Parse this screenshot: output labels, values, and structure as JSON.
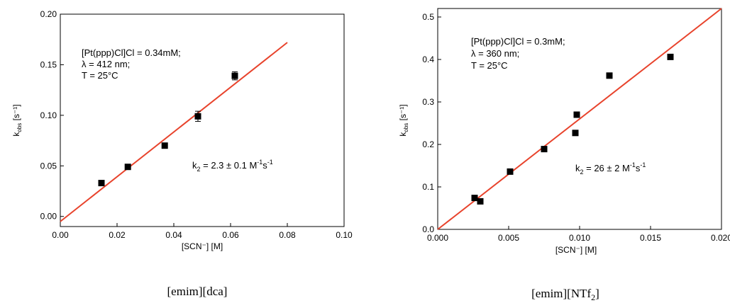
{
  "chart_data": [
    {
      "type": "scatter",
      "caption": "[emim][dca]",
      "xlabel": "[SCN⁻] [M]",
      "ylabel_main": "k",
      "ylabel_sub": "obs",
      "ylabel_unit": " [s⁻¹]",
      "xlim": [
        0,
        0.1
      ],
      "ylim": [
        -0.01,
        0.2
      ],
      "xticks": [
        0,
        0.02,
        0.04,
        0.06,
        0.08,
        0.1
      ],
      "xtick_labels": [
        "0.00",
        "0.02",
        "0.04",
        "0.06",
        "0.08",
        "0.10"
      ],
      "yticks": [
        0,
        0.05,
        0.1,
        0.15,
        0.2
      ],
      "ytick_labels": [
        "0.00",
        "0.05",
        "0.10",
        "0.15",
        "0.20"
      ],
      "points": [
        {
          "x": 0.0145,
          "y": 0.033,
          "err": 0
        },
        {
          "x": 0.0238,
          "y": 0.049,
          "err": 0
        },
        {
          "x": 0.0368,
          "y": 0.07,
          "err": 0
        },
        {
          "x": 0.0485,
          "y": 0.099,
          "err": 0.005
        },
        {
          "x": 0.0615,
          "y": 0.139,
          "err": 0.004
        }
      ],
      "fit": {
        "x0": 0,
        "y0": -0.005,
        "x1": 0.08,
        "y1": 0.172,
        "color": "#e8432c"
      },
      "conditions": [
        "[Pt(ppp)Cl]Cl = 0.34mM;",
        "λ = 412 nm;",
        "T = 25°C"
      ],
      "rate": {
        "pre": "k",
        "sub": "2",
        "mid": " = 2.3 ± 0.1 M",
        "sup1": "-1",
        "s": "s",
        "sup2": "-1"
      },
      "grid": false
    },
    {
      "type": "scatter",
      "caption_pre": "[emim][NTf",
      "caption_sub": "2",
      "caption_post": "]",
      "xlabel": "[SCN⁻] [M]",
      "ylabel_main": "k",
      "ylabel_sub": "obs",
      "ylabel_unit": " [s⁻¹]",
      "xlim": [
        0,
        0.02
      ],
      "ylim": [
        0,
        0.52
      ],
      "xticks": [
        0,
        0.005,
        0.01,
        0.015,
        0.02
      ],
      "xtick_labels": [
        "0.000",
        "0.005",
        "0.010",
        "0.015",
        "0.020"
      ],
      "yticks": [
        0,
        0.1,
        0.2,
        0.3,
        0.4,
        0.5
      ],
      "ytick_labels": [
        "0.0",
        "0.1",
        "0.2",
        "0.3",
        "0.4",
        "0.5"
      ],
      "points": [
        {
          "x": 0.0026,
          "y": 0.074,
          "err": 0
        },
        {
          "x": 0.003,
          "y": 0.066,
          "err": 0
        },
        {
          "x": 0.0051,
          "y": 0.136,
          "err": 0
        },
        {
          "x": 0.0075,
          "y": 0.189,
          "err": 0
        },
        {
          "x": 0.0097,
          "y": 0.227,
          "err": 0
        },
        {
          "x": 0.0098,
          "y": 0.27,
          "err": 0
        },
        {
          "x": 0.0121,
          "y": 0.362,
          "err": 0
        },
        {
          "x": 0.0164,
          "y": 0.406,
          "err": 0
        }
      ],
      "fit": {
        "x0": 0,
        "y0": 0,
        "x1": 0.02,
        "y1": 0.52,
        "color": "#e8432c"
      },
      "conditions": [
        "[Pt(ppp)Cl]Cl = 0.3mM;",
        "λ = 360 nm;",
        "T = 25°C"
      ],
      "rate": {
        "pre": "k",
        "sub": "2",
        "mid": " = 26 ± 2 M",
        "sup1": "-1",
        "s": "s",
        "sup2": "-1"
      },
      "grid": false
    }
  ]
}
